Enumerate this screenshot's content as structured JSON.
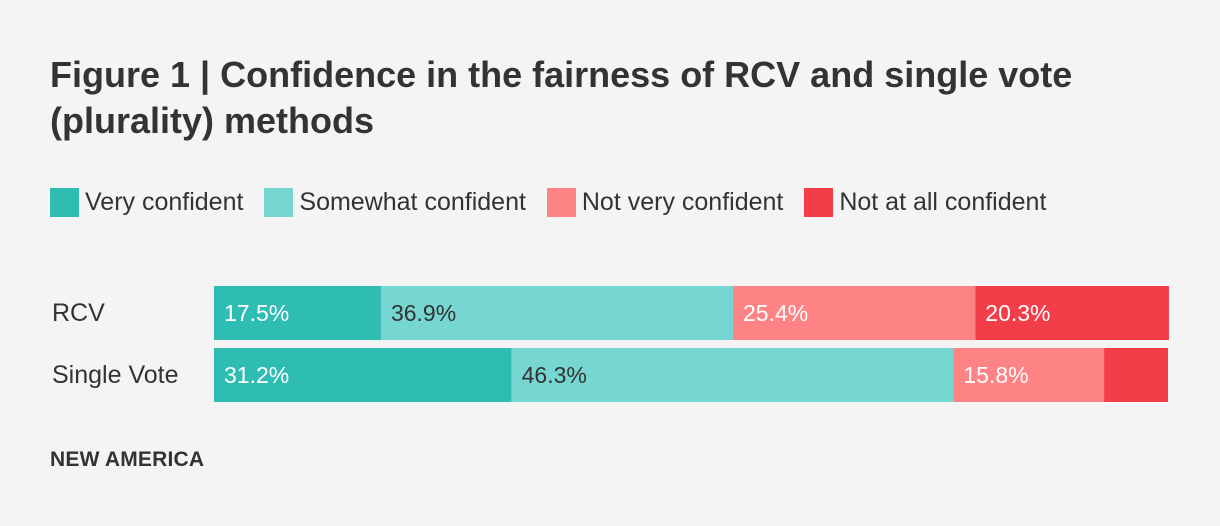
{
  "title": "Figure 1 | Confidence in the fairness of RCV and single vote (plurality) methods",
  "legend": [
    {
      "label": "Very confident",
      "color": "#2fbdb3"
    },
    {
      "label": "Somewhat confident",
      "color": "#76d6d1"
    },
    {
      "label": "Not very confident",
      "color": "#fe8385"
    },
    {
      "label": "Not at all confident",
      "color": "#f33e4a"
    }
  ],
  "chart_data": {
    "type": "bar",
    "orientation": "horizontal",
    "stacked": true,
    "title": "Figure 1 | Confidence in the fairness of RCV and single vote (plurality) methods",
    "categories": [
      "RCV",
      "Single Vote"
    ],
    "series": [
      {
        "name": "Very confident",
        "values": [
          17.5,
          31.2
        ],
        "labels": [
          "17.5%",
          "31.2%"
        ]
      },
      {
        "name": "Somewhat confident",
        "values": [
          36.9,
          46.3
        ],
        "labels": [
          "36.9%",
          "46.3%"
        ]
      },
      {
        "name": "Not very confident",
        "values": [
          25.4,
          15.8
        ],
        "labels": [
          "25.4%",
          "15.8%"
        ]
      },
      {
        "name": "Not at all confident",
        "values": [
          20.3,
          6.7
        ],
        "labels": [
          "20.3%",
          ""
        ]
      }
    ],
    "xlim": [
      0,
      100
    ],
    "legend_position": "top",
    "grid": false
  },
  "source": "NEW AMERICA"
}
